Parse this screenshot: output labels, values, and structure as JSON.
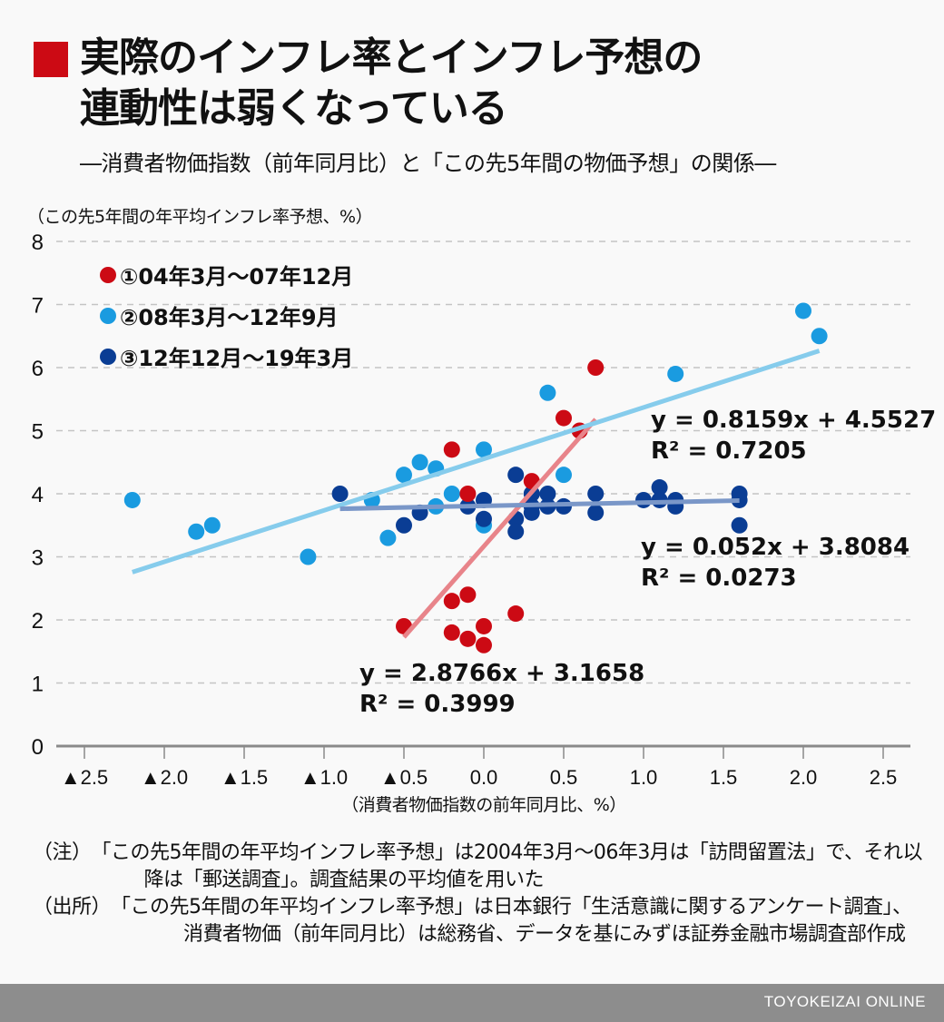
{
  "header": {
    "title_line1": "実際のインフレ率とインフレ予想の",
    "title_line2": "連動性は弱くなっている",
    "subtitle": "―消費者物価指数（前年同月比）と「この先5年間の物価予想」の関係―",
    "accent_color": "#cc0a14"
  },
  "chart_data": {
    "type": "scatter",
    "title": "実際のインフレ率とインフレ予想の連動性は弱くなっている",
    "subtitle": "―消費者物価指数（前年同月比）と「この先5年間の物価予想」の関係―",
    "xlabel": "（消費者物価指数の前年同月比、%）",
    "ylabel": "（この先5年間の年平均インフレ率予想、%）",
    "xlim": [
      -2.75,
      2.65
    ],
    "ylim": [
      0,
      8
    ],
    "x_ticks": [
      -2.5,
      -2.0,
      -1.5,
      -1.0,
      -0.5,
      0.0,
      0.5,
      1.0,
      1.5,
      2.0,
      2.5
    ],
    "x_tick_labels": [
      "▲2.5",
      "▲2.0",
      "▲1.5",
      "▲1.0",
      "▲0.5",
      "0.0",
      "0.5",
      "1.0",
      "1.5",
      "2.0",
      "2.5"
    ],
    "y_ticks": [
      0,
      1,
      2,
      3,
      4,
      5,
      6,
      7,
      8
    ],
    "y_tick_labels": [
      "0",
      "1",
      "2",
      "3",
      "4",
      "5",
      "6",
      "7",
      "8"
    ],
    "grid": "horizontal-dashed",
    "legend_position": "top-left",
    "series": [
      {
        "name": "①04年3月〜07年12月",
        "color": "#cc0a14",
        "trend_color": "#e8848a",
        "points": [
          [
            -0.5,
            1.9
          ],
          [
            -0.2,
            2.3
          ],
          [
            -0.1,
            2.4
          ],
          [
            -0.2,
            1.8
          ],
          [
            -0.1,
            1.7
          ],
          [
            0.0,
            1.9
          ],
          [
            0.0,
            1.6
          ],
          [
            0.2,
            2.1
          ],
          [
            -0.2,
            4.7
          ],
          [
            -0.1,
            4.0
          ],
          [
            0.3,
            4.2
          ],
          [
            0.5,
            5.2
          ],
          [
            0.6,
            5.0
          ],
          [
            0.7,
            6.0
          ]
        ],
        "trend": {
          "slope": 2.8766,
          "intercept": 3.1658,
          "x_range": [
            -0.5,
            0.7
          ],
          "equation": "y = 2.8766x + 3.1658",
          "r2": "R² = 0.3999"
        }
      },
      {
        "name": "②08年3月〜12年9月",
        "color": "#1a9be0",
        "trend_color": "#86ccec",
        "points": [
          [
            -2.2,
            3.9
          ],
          [
            -1.8,
            3.4
          ],
          [
            -1.7,
            3.5
          ],
          [
            -1.1,
            3.0
          ],
          [
            -0.7,
            3.9
          ],
          [
            -0.6,
            3.3
          ],
          [
            -0.5,
            4.3
          ],
          [
            -0.4,
            4.5
          ],
          [
            -0.3,
            4.4
          ],
          [
            -0.3,
            3.8
          ],
          [
            -0.2,
            4.0
          ],
          [
            0.0,
            4.7
          ],
          [
            0.0,
            3.5
          ],
          [
            0.4,
            5.6
          ],
          [
            0.5,
            4.3
          ],
          [
            1.2,
            5.9
          ],
          [
            2.0,
            6.9
          ],
          [
            2.1,
            6.5
          ]
        ],
        "trend": {
          "slope": 0.8159,
          "intercept": 4.5527,
          "x_range": [
            -2.2,
            2.1
          ],
          "equation": "y = 0.8159x + 4.5527",
          "r2": "R² = 0.7205"
        }
      },
      {
        "name": "③12年12月〜19年3月",
        "color": "#0a3d94",
        "trend_color": "#7a97c8",
        "points": [
          [
            -0.9,
            4.0
          ],
          [
            -0.5,
            3.5
          ],
          [
            -0.4,
            3.7
          ],
          [
            -0.1,
            3.8
          ],
          [
            0.0,
            3.9
          ],
          [
            0.0,
            3.6
          ],
          [
            0.2,
            4.3
          ],
          [
            0.2,
            3.6
          ],
          [
            0.2,
            3.4
          ],
          [
            0.3,
            4.0
          ],
          [
            0.3,
            3.8
          ],
          [
            0.3,
            3.7
          ],
          [
            0.4,
            4.0
          ],
          [
            0.4,
            3.8
          ],
          [
            0.5,
            3.8
          ],
          [
            0.7,
            4.0
          ],
          [
            0.7,
            3.7
          ],
          [
            1.0,
            3.9
          ],
          [
            1.1,
            4.1
          ],
          [
            1.1,
            3.9
          ],
          [
            1.2,
            3.9
          ],
          [
            1.2,
            3.8
          ],
          [
            1.6,
            4.0
          ],
          [
            1.6,
            3.9
          ],
          [
            1.6,
            3.5
          ]
        ],
        "trend": {
          "slope": 0.052,
          "intercept": 3.8084,
          "x_range": [
            -0.9,
            1.6
          ],
          "equation": "y = 0.052x + 3.8084",
          "r2": "R² = 0.0273"
        }
      }
    ]
  },
  "notes": {
    "note1_head": "（注）",
    "note1_body": "「この先5年間の年平均インフレ率予想」は2004年3月〜06年3月は「訪問留置法」で、それ以降は「郵送調査」。調査結果の平均値を用いた",
    "note2_head": "（出所）",
    "note2_body": "「この先5年間の年平均インフレ率予想」は日本銀行「生活意識に関するアンケート調査」、消費者物価（前年同月比）は総務省、データを基にみずほ証券金融市場調査部作成"
  },
  "footer": {
    "brand": "TOYOKEIZAI ONLINE"
  }
}
